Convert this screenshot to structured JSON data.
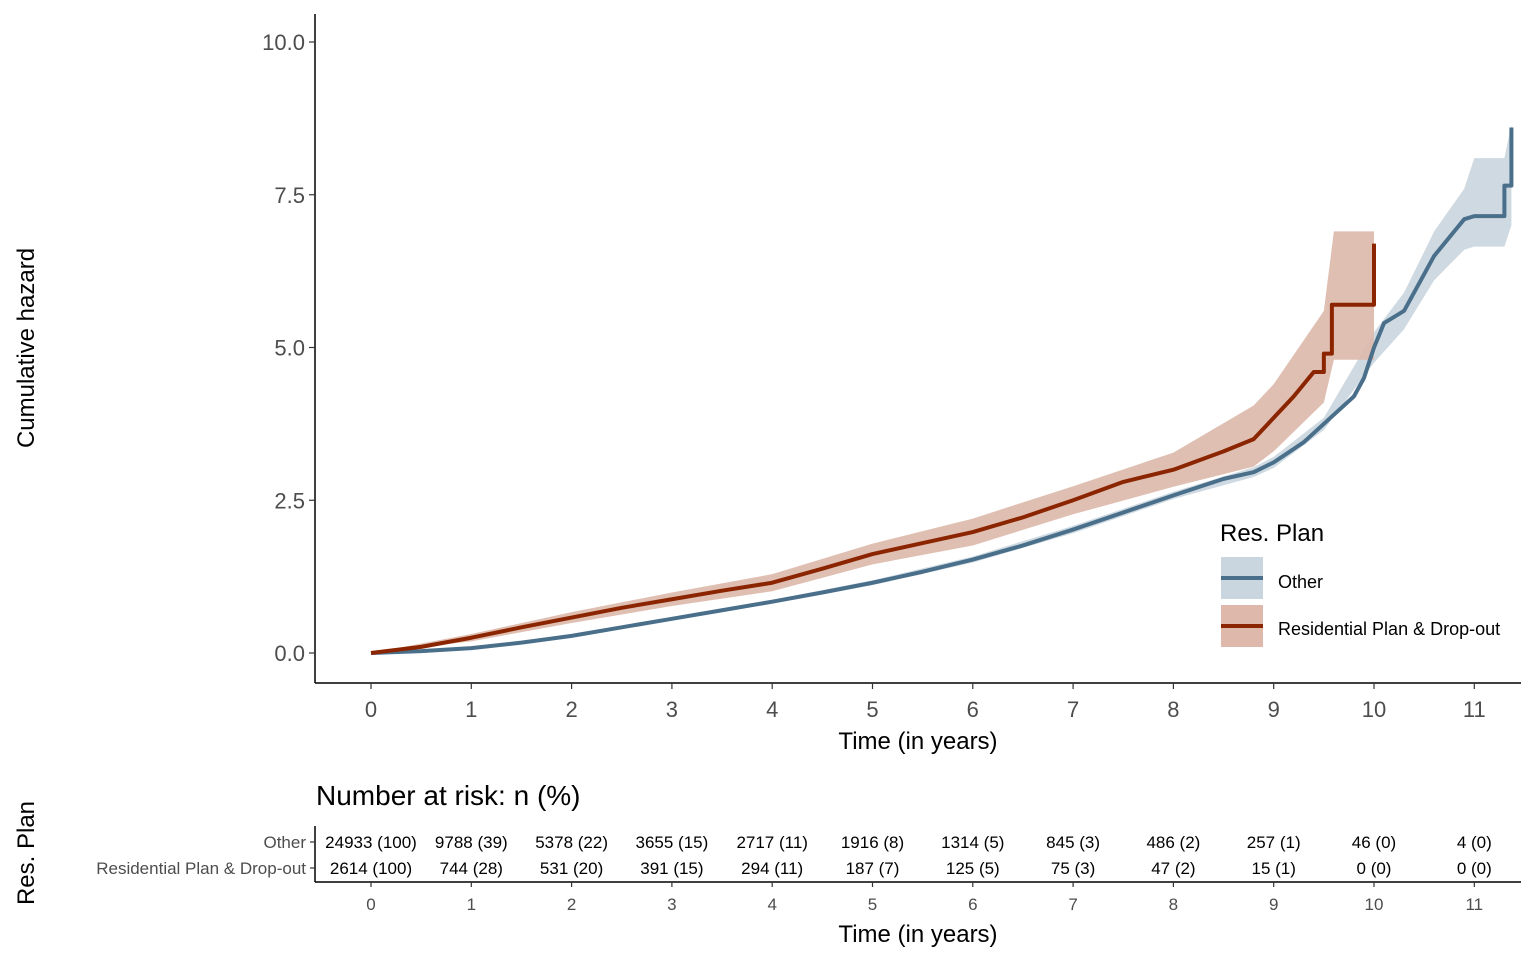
{
  "chart_data": [
    {
      "type": "line",
      "title": "",
      "xlabel": "Time (in years)",
      "ylabel": "Cumulative hazard",
      "xlim": [
        -0.55,
        11.5
      ],
      "ylim": [
        -1.0,
        10.5
      ],
      "x_ticks": [
        0,
        1,
        2,
        3,
        4,
        5,
        6,
        7,
        8,
        9,
        10,
        11
      ],
      "y_ticks": [
        0.0,
        2.5,
        5.0,
        7.5,
        10.0
      ],
      "y_tick_labels": [
        "0.0",
        "2.5",
        "5.0",
        "7.5",
        "10.0"
      ],
      "grid": false,
      "legend": {
        "title": "Res. Plan",
        "position": "right"
      },
      "series": [
        {
          "name": "Other",
          "color": "#4a6f8a",
          "band_color": "#c9d5df",
          "points": [
            [
              0,
              0
            ],
            [
              0.5,
              0.03
            ],
            [
              1,
              0.08
            ],
            [
              1.5,
              0.17
            ],
            [
              2,
              0.28
            ],
            [
              2.5,
              0.42
            ],
            [
              3,
              0.56
            ],
            [
              3.5,
              0.7
            ],
            [
              4,
              0.84
            ],
            [
              4.5,
              0.99
            ],
            [
              5,
              1.15
            ],
            [
              5.5,
              1.33
            ],
            [
              6,
              1.53
            ],
            [
              6.5,
              1.76
            ],
            [
              7,
              2.02
            ],
            [
              7.5,
              2.3
            ],
            [
              8,
              2.58
            ],
            [
              8.5,
              2.85
            ],
            [
              8.8,
              2.96
            ],
            [
              9,
              3.12
            ],
            [
              9.3,
              3.45
            ],
            [
              9.6,
              3.9
            ],
            [
              9.8,
              4.2
            ],
            [
              9.9,
              4.5
            ],
            [
              10,
              5.0
            ],
            [
              10.1,
              5.4
            ],
            [
              10.3,
              5.6
            ],
            [
              10.5,
              6.2
            ],
            [
              10.6,
              6.5
            ],
            [
              10.7,
              6.7
            ],
            [
              10.8,
              6.9
            ],
            [
              10.9,
              7.1
            ],
            [
              11.0,
              7.15
            ],
            [
              11.3,
              7.15
            ],
            [
              11.3,
              7.65
            ],
            [
              11.37,
              7.65
            ],
            [
              11.37,
              8.6
            ]
          ],
          "band_lower": [
            [
              0,
              0
            ],
            [
              1,
              0.07
            ],
            [
              2,
              0.26
            ],
            [
              3,
              0.53
            ],
            [
              4,
              0.81
            ],
            [
              5,
              1.11
            ],
            [
              6,
              1.48
            ],
            [
              7,
              1.96
            ],
            [
              8,
              2.52
            ],
            [
              8.8,
              2.88
            ],
            [
              9,
              3.03
            ],
            [
              9.5,
              3.65
            ],
            [
              10,
              4.75
            ],
            [
              10.3,
              5.3
            ],
            [
              10.6,
              6.1
            ],
            [
              10.9,
              6.6
            ],
            [
              11.0,
              6.65
            ],
            [
              11.3,
              6.65
            ],
            [
              11.37,
              7.0
            ]
          ],
          "band_upper": [
            [
              0,
              0
            ],
            [
              1,
              0.09
            ],
            [
              2,
              0.3
            ],
            [
              3,
              0.59
            ],
            [
              4,
              0.87
            ],
            [
              5,
              1.19
            ],
            [
              6,
              1.58
            ],
            [
              7,
              2.08
            ],
            [
              8,
              2.64
            ],
            [
              8.8,
              3.04
            ],
            [
              9,
              3.21
            ],
            [
              9.5,
              3.85
            ],
            [
              10,
              5.25
            ],
            [
              10.3,
              5.9
            ],
            [
              10.6,
              6.9
            ],
            [
              10.9,
              7.6
            ],
            [
              11.0,
              8.1
            ],
            [
              11.3,
              8.1
            ],
            [
              11.37,
              8.65
            ]
          ]
        },
        {
          "name": "Residential Plan & Drop-out",
          "color": "#8b2500",
          "band_color": "#ddb8ab",
          "points": [
            [
              0,
              0
            ],
            [
              0.5,
              0.1
            ],
            [
              1,
              0.25
            ],
            [
              1.5,
              0.42
            ],
            [
              2,
              0.58
            ],
            [
              2.5,
              0.74
            ],
            [
              3,
              0.88
            ],
            [
              3.5,
              1.02
            ],
            [
              4,
              1.15
            ],
            [
              4.5,
              1.38
            ],
            [
              5,
              1.62
            ],
            [
              5.5,
              1.8
            ],
            [
              6,
              1.98
            ],
            [
              6.5,
              2.22
            ],
            [
              7,
              2.5
            ],
            [
              7.5,
              2.8
            ],
            [
              8,
              3.0
            ],
            [
              8.5,
              3.3
            ],
            [
              8.8,
              3.5
            ],
            [
              9,
              3.85
            ],
            [
              9.2,
              4.2
            ],
            [
              9.4,
              4.6
            ],
            [
              9.5,
              4.6
            ],
            [
              9.5,
              4.9
            ],
            [
              9.58,
              4.9
            ],
            [
              9.58,
              5.7
            ],
            [
              10,
              5.7
            ],
            [
              10,
              6.7
            ]
          ],
          "band_lower": [
            [
              0,
              0
            ],
            [
              1,
              0.19
            ],
            [
              2,
              0.49
            ],
            [
              3,
              0.77
            ],
            [
              4,
              1.01
            ],
            [
              5,
              1.45
            ],
            [
              6,
              1.76
            ],
            [
              7,
              2.27
            ],
            [
              8,
              2.72
            ],
            [
              8.8,
              3.05
            ],
            [
              9,
              3.3
            ],
            [
              9.5,
              4.1
            ],
            [
              9.6,
              4.8
            ],
            [
              10,
              4.8
            ]
          ],
          "band_upper": [
            [
              0,
              0
            ],
            [
              1,
              0.31
            ],
            [
              2,
              0.67
            ],
            [
              3,
              0.99
            ],
            [
              4,
              1.29
            ],
            [
              5,
              1.79
            ],
            [
              6,
              2.2
            ],
            [
              7,
              2.73
            ],
            [
              8,
              3.28
            ],
            [
              8.8,
              4.05
            ],
            [
              9,
              4.4
            ],
            [
              9.5,
              5.6
            ],
            [
              9.6,
              6.9
            ],
            [
              10,
              6.9
            ]
          ]
        }
      ]
    },
    {
      "type": "table",
      "title": "Number at risk: n (%)",
      "xlabel": "Time (in years)",
      "ylabel": "Res. Plan",
      "x_ticks": [
        0,
        1,
        2,
        3,
        4,
        5,
        6,
        7,
        8,
        9,
        10,
        11
      ],
      "rows": [
        {
          "name": "Other",
          "values": [
            "24933 (100)",
            "9788 (39)",
            "5378 (22)",
            "3655 (15)",
            "2717 (11)",
            "1916 (8)",
            "1314 (5)",
            "845 (3)",
            "486 (2)",
            "257 (1)",
            "46 (0)",
            "4 (0)"
          ]
        },
        {
          "name": "Residential Plan & Drop-out",
          "values": [
            "2614 (100)",
            "744 (28)",
            "531 (20)",
            "391 (15)",
            "294 (11)",
            "187 (7)",
            "125 (5)",
            "75 (3)",
            "47 (2)",
            "15 (1)",
            "0 (0)",
            "0 (0)"
          ]
        }
      ]
    }
  ]
}
